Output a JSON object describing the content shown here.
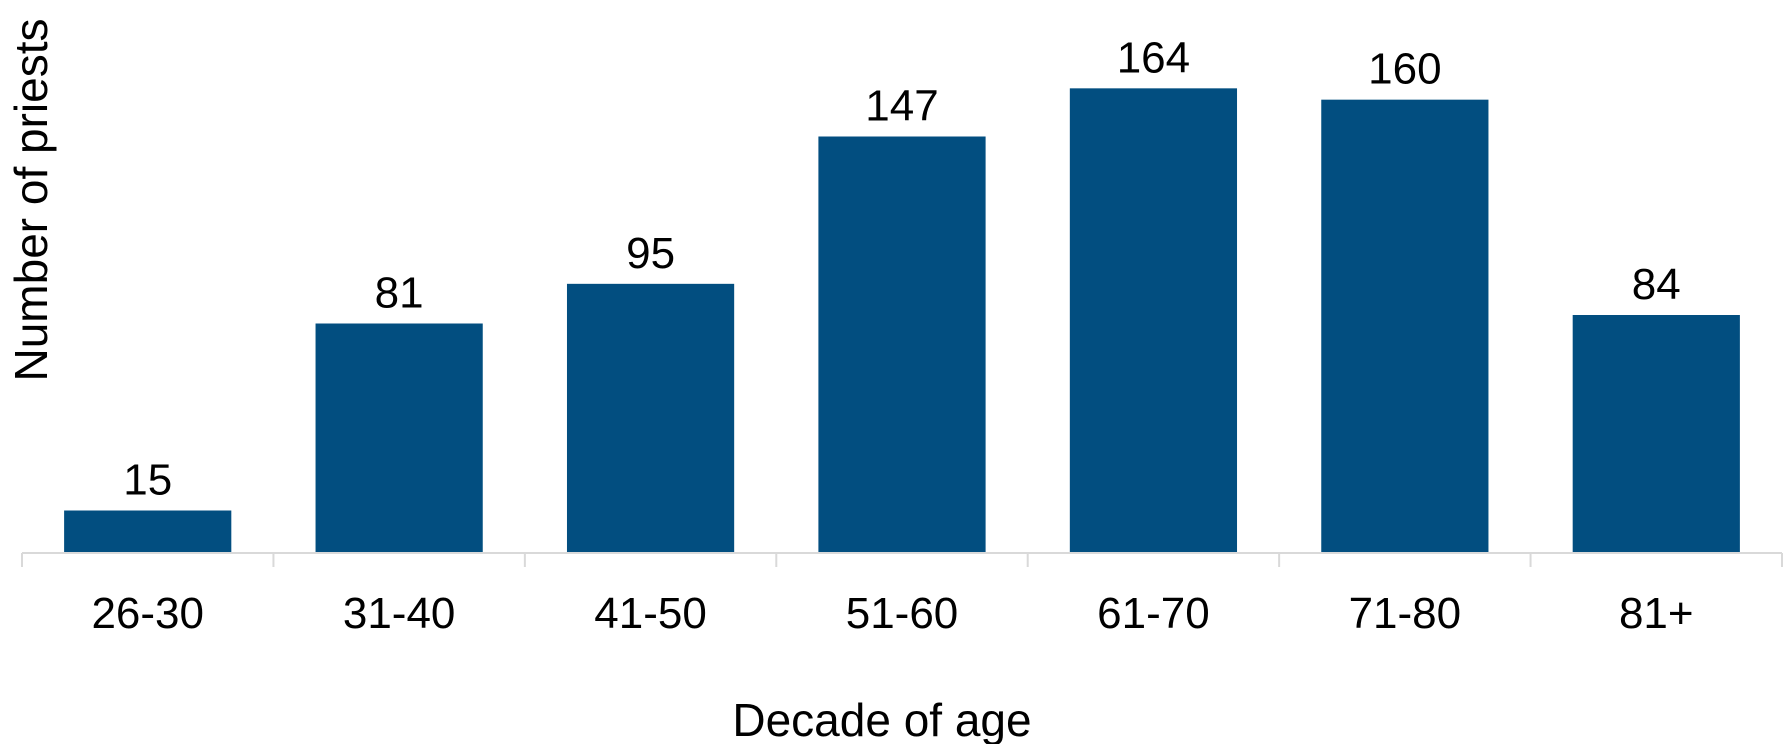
{
  "chart_data": {
    "type": "bar",
    "categories": [
      "26-30",
      "31-40",
      "41-50",
      "51-60",
      "61-70",
      "71-80",
      "81+"
    ],
    "values": [
      15,
      81,
      95,
      147,
      164,
      160,
      84
    ],
    "data_labels": [
      "15",
      "81",
      "95",
      "147",
      "164",
      "160",
      "84"
    ],
    "xlabel": "Decade of age",
    "ylabel": "Number of priests",
    "ylim": [
      0,
      180
    ],
    "grid": false,
    "legend": "none",
    "bar_color": "#024E80",
    "axis_color": "#D9D9D9"
  }
}
